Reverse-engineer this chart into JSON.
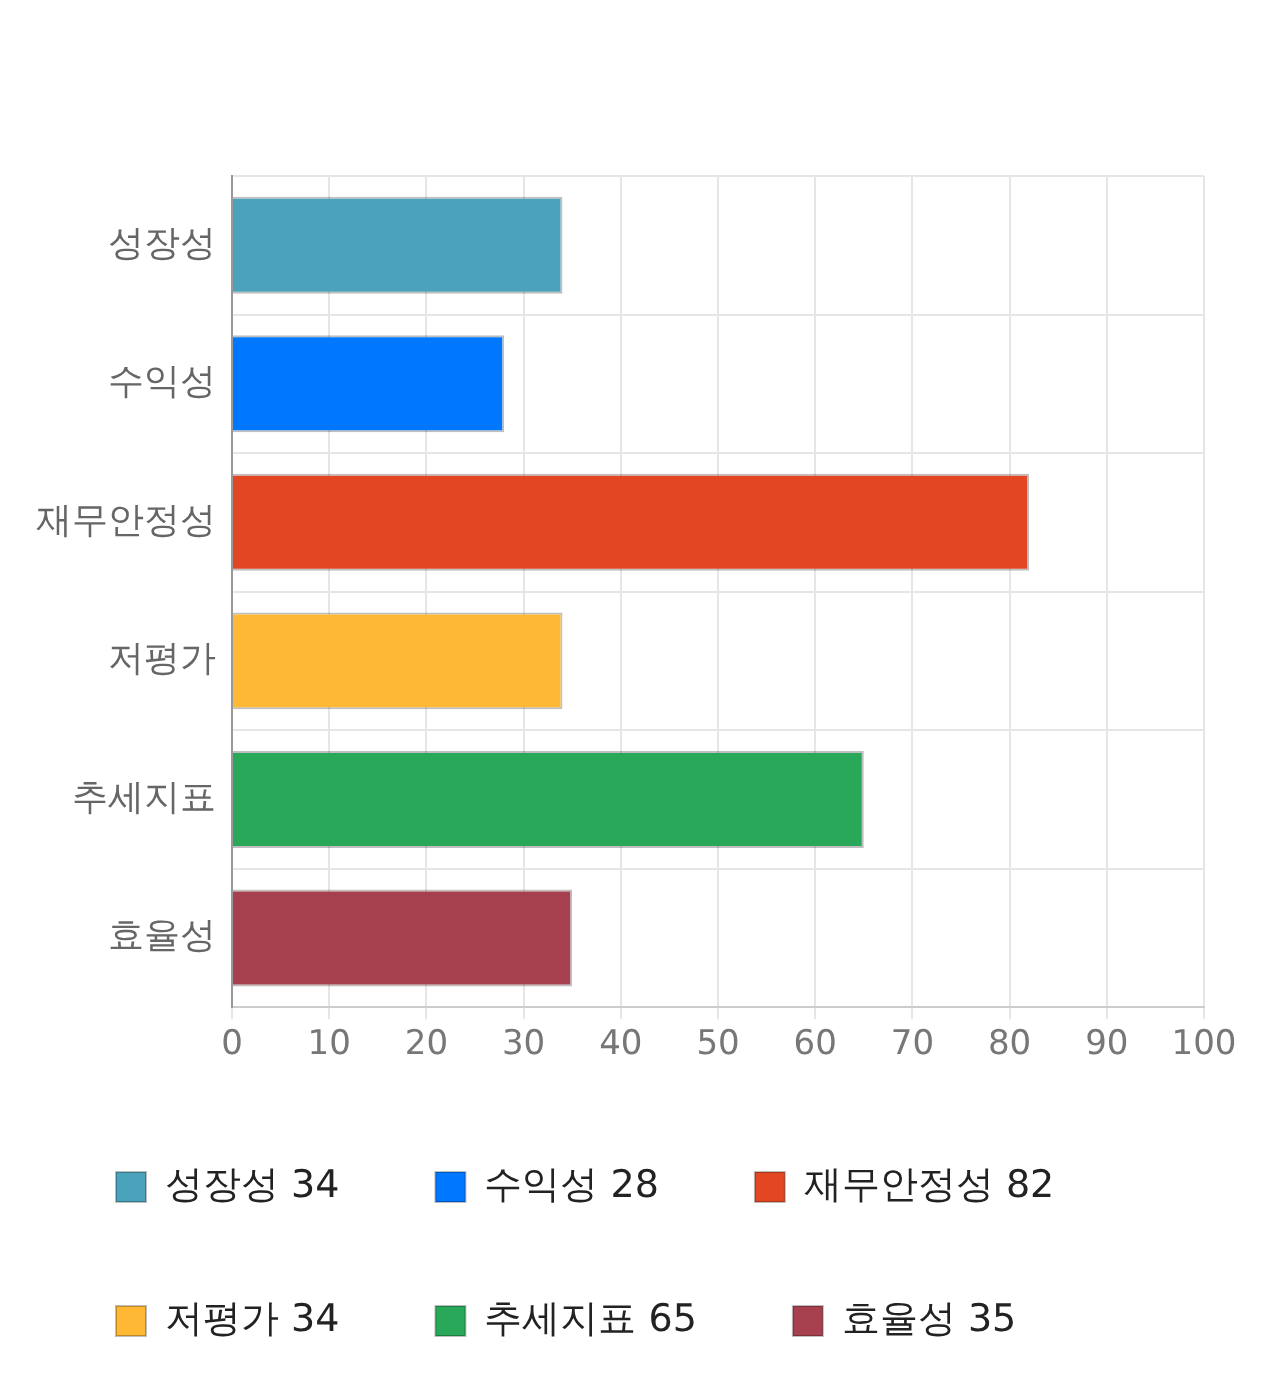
{
  "chart_data": {
    "type": "bar",
    "orientation": "horizontal",
    "stacked": true,
    "categories": [
      "성장성",
      "수익성",
      "재무안정성",
      "저평가",
      "추세지표",
      "효율성"
    ],
    "series": [
      {
        "name": "성장성 34",
        "color": "#4aa3ba",
        "values": [
          34,
          null,
          null,
          null,
          null,
          null
        ]
      },
      {
        "name": "수익성 28",
        "color": "#0077ff",
        "values": [
          null,
          28,
          null,
          null,
          null,
          null
        ]
      },
      {
        "name": "재무안정성 82",
        "color": "#e34622",
        "values": [
          null,
          null,
          82,
          null,
          null,
          null
        ]
      },
      {
        "name": "저평가 34",
        "color": "#ffb833",
        "values": [
          null,
          null,
          null,
          34,
          null,
          null
        ]
      },
      {
        "name": "추세지표 65",
        "color": "#28a858",
        "values": [
          null,
          null,
          null,
          null,
          65,
          null
        ]
      },
      {
        "name": "효율성 35",
        "color": "#a6404f",
        "values": [
          null,
          null,
          null,
          null,
          null,
          35
        ]
      }
    ],
    "xlim": [
      0,
      100
    ],
    "xticks": [
      0,
      10,
      20,
      30,
      40,
      50,
      60,
      70,
      80,
      90,
      100
    ],
    "grid": true,
    "legend": "bottom"
  }
}
